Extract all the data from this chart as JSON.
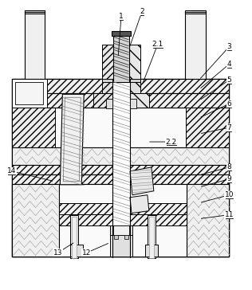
{
  "bg_color": "#ffffff",
  "lc": "#000000",
  "figsize": [
    3.16,
    3.64
  ],
  "dpi": 100,
  "labels": {
    "1": [
      152,
      20,
      148,
      72
    ],
    "2": [
      178,
      14,
      162,
      60
    ],
    "2.1": [
      198,
      55,
      178,
      107
    ],
    "3": [
      288,
      58,
      250,
      100
    ],
    "4": [
      288,
      80,
      250,
      112
    ],
    "5": [
      288,
      100,
      250,
      126
    ],
    "6": [
      288,
      130,
      250,
      148
    ],
    "2.2": [
      215,
      178,
      185,
      178
    ],
    "7": [
      288,
      160,
      250,
      168
    ],
    "8": [
      288,
      210,
      250,
      220
    ],
    "9": [
      288,
      225,
      250,
      235
    ],
    "10": [
      288,
      245,
      250,
      255
    ],
    "11": [
      288,
      270,
      250,
      275
    ],
    "14": [
      14,
      215,
      68,
      228
    ],
    "13": [
      72,
      318,
      94,
      304
    ],
    "12": [
      108,
      318,
      138,
      305
    ]
  }
}
